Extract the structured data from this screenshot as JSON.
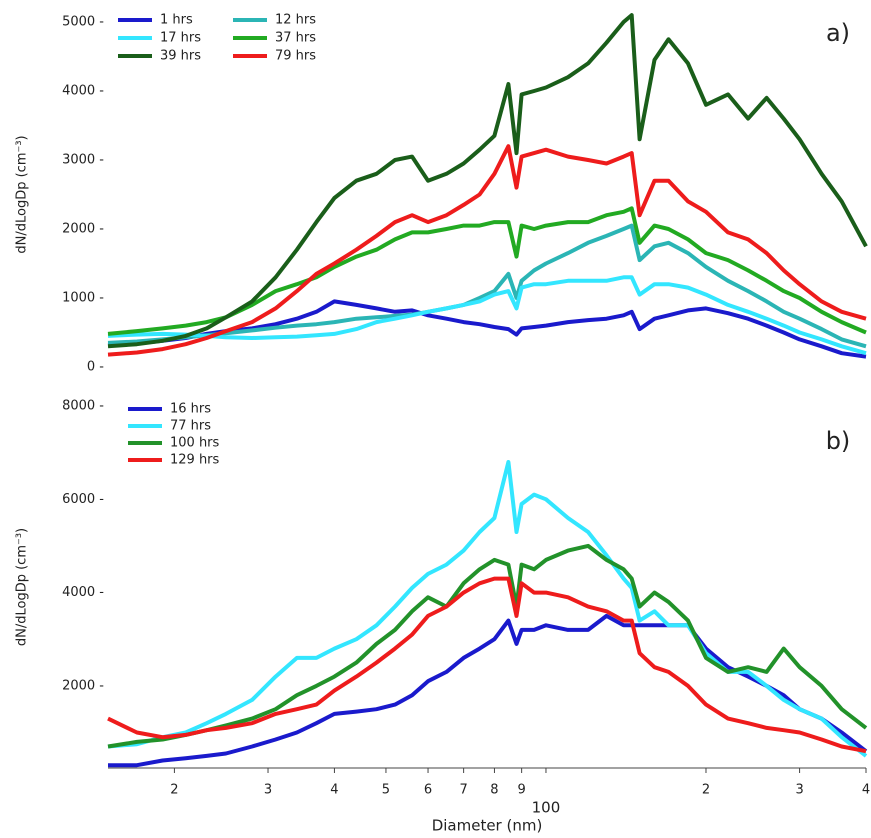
{
  "chart_data": [
    {
      "type": "line",
      "annotation": "a)",
      "ylabel": "dN/dLogDp (cm⁻³)",
      "xscale": "log",
      "legend_columns": 2,
      "xlim": [
        15,
        400
      ],
      "ylim": [
        0,
        5000
      ],
      "yticks": [
        {
          "value": 0,
          "label": "0 -"
        },
        {
          "value": 1000,
          "label": "1000 -"
        },
        {
          "value": 2000,
          "label": "2000 -"
        },
        {
          "value": 3000,
          "label": "3000 -"
        },
        {
          "value": 4000,
          "label": "4000 -"
        },
        {
          "value": 5000,
          "label": "5000 -"
        }
      ],
      "x": [
        15,
        17,
        19,
        21,
        23,
        25,
        28,
        31,
        34,
        37,
        40,
        44,
        48,
        52,
        56,
        60,
        65,
        70,
        75,
        80,
        85,
        88,
        90,
        95,
        100,
        110,
        120,
        130,
        140,
        145,
        150,
        160,
        170,
        185,
        200,
        220,
        240,
        260,
        280,
        300,
        330,
        360,
        400
      ],
      "series": [
        {
          "name": "1 hrs",
          "color": "#1a1acc",
          "values": [
            320,
            340,
            380,
            420,
            480,
            520,
            560,
            620,
            700,
            800,
            950,
            900,
            850,
            800,
            820,
            750,
            700,
            650,
            620,
            580,
            550,
            470,
            560,
            580,
            600,
            650,
            680,
            700,
            750,
            800,
            550,
            700,
            750,
            820,
            850,
            780,
            700,
            600,
            500,
            400,
            300,
            200,
            150
          ]
        },
        {
          "name": "12 hrs",
          "color": "#2bb5b5",
          "values": [
            350,
            370,
            400,
            430,
            460,
            490,
            530,
            570,
            600,
            620,
            650,
            700,
            720,
            740,
            760,
            800,
            850,
            900,
            1000,
            1100,
            1350,
            1000,
            1250,
            1400,
            1500,
            1650,
            1800,
            1900,
            2000,
            2050,
            1550,
            1750,
            1800,
            1650,
            1450,
            1250,
            1100,
            950,
            800,
            700,
            550,
            400,
            300
          ]
        },
        {
          "name": "17 hrs",
          "color": "#33e6ff",
          "values": [
            450,
            470,
            480,
            470,
            450,
            430,
            420,
            430,
            440,
            460,
            480,
            550,
            650,
            700,
            750,
            800,
            850,
            900,
            950,
            1050,
            1100,
            850,
            1150,
            1200,
            1200,
            1250,
            1250,
            1250,
            1300,
            1300,
            1050,
            1200,
            1200,
            1150,
            1050,
            900,
            800,
            700,
            600,
            500,
            400,
            300,
            200
          ]
        },
        {
          "name": "37 hrs",
          "color": "#22aa22",
          "values": [
            480,
            520,
            560,
            600,
            650,
            720,
            900,
            1100,
            1200,
            1300,
            1450,
            1600,
            1700,
            1850,
            1950,
            1950,
            2000,
            2050,
            2050,
            2100,
            2100,
            1600,
            2050,
            2000,
            2050,
            2100,
            2100,
            2200,
            2250,
            2300,
            1800,
            2050,
            2000,
            1850,
            1650,
            1550,
            1400,
            1250,
            1100,
            1000,
            800,
            650,
            500
          ]
        },
        {
          "name": "39 hrs",
          "color": "#1a5e1a",
          "values": [
            300,
            330,
            380,
            450,
            560,
            720,
            950,
            1300,
            1700,
            2100,
            2450,
            2700,
            2800,
            3000,
            3050,
            2700,
            2800,
            2950,
            3150,
            3350,
            4100,
            3100,
            3950,
            4000,
            4050,
            4200,
            4400,
            4700,
            5000,
            5100,
            3300,
            4450,
            4750,
            4400,
            3800,
            3950,
            3600,
            3900,
            3600,
            3300,
            2800,
            2400,
            1750
          ]
        },
        {
          "name": "79 hrs",
          "color": "#ee1c1c",
          "values": [
            180,
            210,
            260,
            330,
            420,
            520,
            650,
            850,
            1100,
            1350,
            1500,
            1700,
            1900,
            2100,
            2200,
            2100,
            2200,
            2350,
            2500,
            2800,
            3200,
            2600,
            3050,
            3100,
            3150,
            3050,
            3000,
            2950,
            3050,
            3100,
            2200,
            2700,
            2700,
            2400,
            2250,
            1950,
            1850,
            1650,
            1400,
            1200,
            950,
            800,
            700
          ]
        }
      ]
    },
    {
      "type": "line",
      "annotation": "b)",
      "ylabel": "dN/dLogDp (cm⁻³)",
      "xlabel": "Diameter (nm)",
      "xscale": "log",
      "legend_columns": 1,
      "xlim": [
        15,
        400
      ],
      "ylim": [
        240,
        8000
      ],
      "yticks": [
        {
          "value": 2000,
          "label": "2000 -"
        },
        {
          "value": 4000,
          "label": "4000 -"
        },
        {
          "value": 6000,
          "label": "6000 -"
        },
        {
          "value": 8000,
          "label": "8000 -"
        }
      ],
      "xticks": [
        {
          "value": 20,
          "label": "2"
        },
        {
          "value": 30,
          "label": "3"
        },
        {
          "value": 40,
          "label": "4"
        },
        {
          "value": 50,
          "label": "5"
        },
        {
          "value": 60,
          "label": "6"
        },
        {
          "value": 70,
          "label": "7"
        },
        {
          "value": 80,
          "label": "8"
        },
        {
          "value": 90,
          "label": "9"
        },
        100,
        {
          "value": 200,
          "label": "2"
        },
        {
          "value": 300,
          "label": "3"
        },
        {
          "value": 400,
          "label": "4"
        }
      ],
      "x": [
        15,
        17,
        19,
        21,
        23,
        25,
        28,
        31,
        34,
        37,
        40,
        44,
        48,
        52,
        56,
        60,
        65,
        70,
        75,
        80,
        85,
        88,
        90,
        95,
        100,
        110,
        120,
        130,
        140,
        145,
        150,
        160,
        170,
        185,
        200,
        220,
        240,
        260,
        280,
        300,
        330,
        360,
        400
      ],
      "series": [
        {
          "name": "16 hrs",
          "color": "#1a1acc",
          "values": [
            300,
            300,
            400,
            450,
            500,
            550,
            700,
            850,
            1000,
            1200,
            1400,
            1450,
            1500,
            1600,
            1800,
            2100,
            2300,
            2600,
            2800,
            3000,
            3400,
            2900,
            3200,
            3200,
            3300,
            3200,
            3200,
            3500,
            3300,
            3300,
            3300,
            3300,
            3300,
            3300,
            2800,
            2400,
            2200,
            2000,
            1800,
            1500,
            1300,
            1000,
            600
          ]
        },
        {
          "name": "77 hrs",
          "color": "#33e6ff",
          "values": [
            700,
            750,
            900,
            1000,
            1200,
            1400,
            1700,
            2200,
            2600,
            2600,
            2800,
            3000,
            3300,
            3700,
            4100,
            4400,
            4600,
            4900,
            5300,
            5600,
            6800,
            5300,
            5900,
            6100,
            6000,
            5600,
            5300,
            4800,
            4300,
            4100,
            3400,
            3600,
            3300,
            3300,
            2700,
            2300,
            2300,
            2000,
            1700,
            1500,
            1300,
            900,
            500
          ]
        },
        {
          "name": "100 hrs",
          "color": "#22922a",
          "values": [
            700,
            800,
            850,
            950,
            1050,
            1150,
            1300,
            1500,
            1800,
            2000,
            2200,
            2500,
            2900,
            3200,
            3600,
            3900,
            3700,
            4200,
            4500,
            4700,
            4600,
            3700,
            4600,
            4500,
            4700,
            4900,
            5000,
            4700,
            4500,
            4300,
            3700,
            4000,
            3800,
            3400,
            2600,
            2300,
            2400,
            2300,
            2800,
            2400,
            2000,
            1500,
            1100
          ]
        },
        {
          "name": "129 hrs",
          "color": "#ee1c1c",
          "values": [
            1300,
            1000,
            900,
            950,
            1050,
            1100,
            1200,
            1400,
            1500,
            1600,
            1900,
            2200,
            2500,
            2800,
            3100,
            3500,
            3700,
            4000,
            4200,
            4300,
            4300,
            3500,
            4200,
            4000,
            4000,
            3900,
            3700,
            3600,
            3400,
            3400,
            2700,
            2400,
            2300,
            2000,
            1600,
            1300,
            1200,
            1100,
            1050,
            1000,
            850,
            700,
            600
          ]
        }
      ]
    }
  ]
}
